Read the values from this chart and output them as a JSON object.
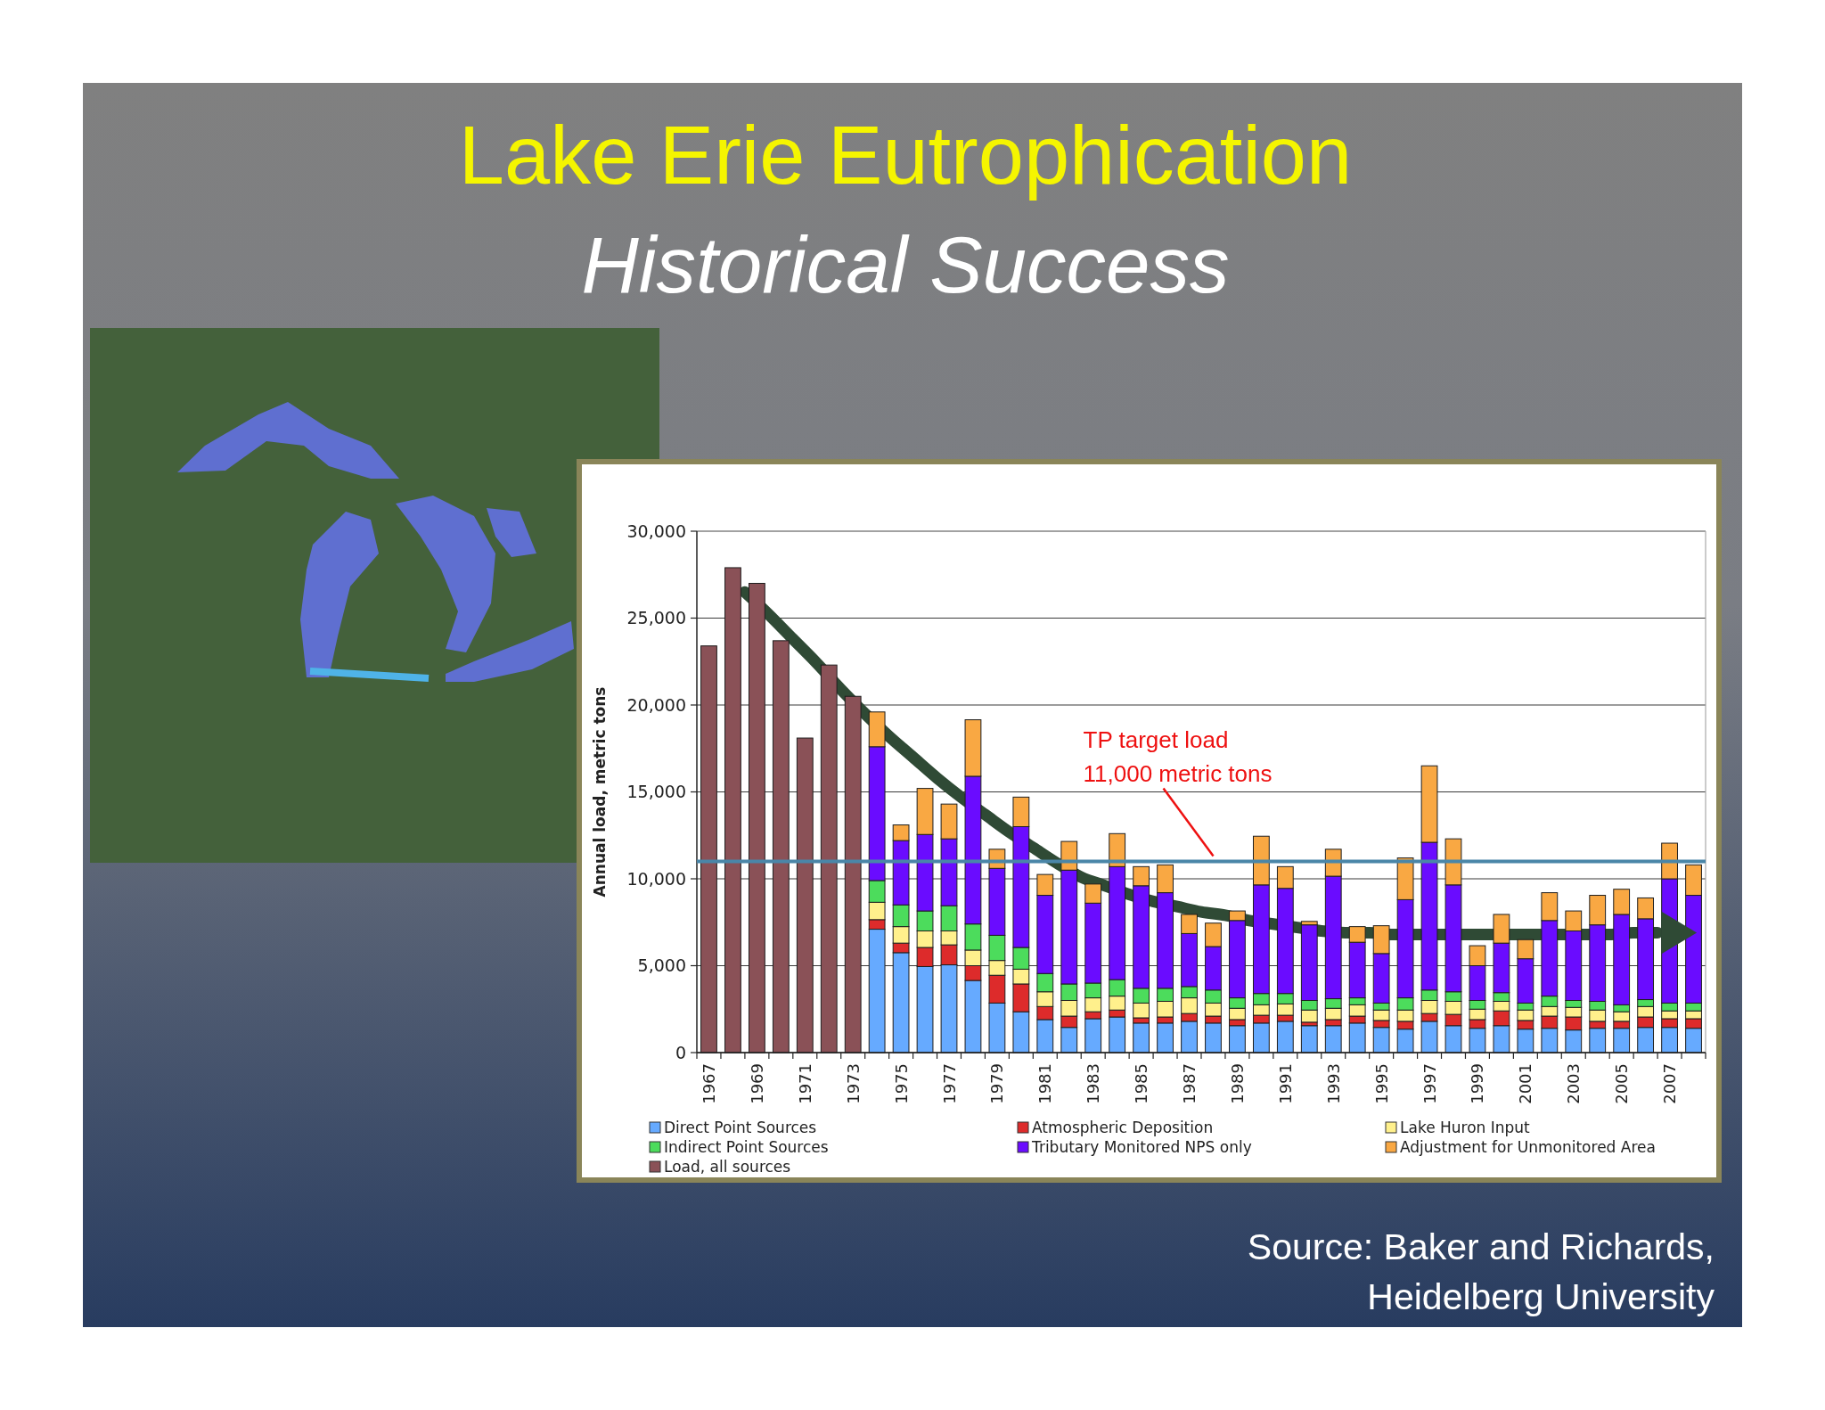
{
  "chart_data": {
    "type": "bar",
    "title": "Lake Erie Eutrophication",
    "subtitle": "Historical Success",
    "ylabel": "Annual load, metric tons",
    "x": [
      1967,
      1968,
      1969,
      1970,
      1971,
      1972,
      1973,
      1974,
      1975,
      1976,
      1977,
      1978,
      1979,
      1980,
      1981,
      1982,
      1983,
      1984,
      1985,
      1986,
      1987,
      1988,
      1989,
      1990,
      1991,
      1992,
      1993,
      1994,
      1995,
      1996,
      1997,
      1998,
      1999,
      2000,
      2001,
      2002,
      2003,
      2004,
      2005,
      2006,
      2007,
      2008
    ],
    "xlim": [
      1966.5,
      2008.5
    ],
    "xticks": [
      1967,
      1969,
      1971,
      1973,
      1975,
      1977,
      1979,
      1981,
      1983,
      1985,
      1987,
      1989,
      1991,
      1993,
      1995,
      1997,
      1999,
      2001,
      2003,
      2005,
      2007
    ],
    "stacked": true,
    "series": [
      {
        "name": "Direct Point Sources",
        "color": "#66aaff",
        "values": [
          null,
          null,
          null,
          null,
          null,
          null,
          null,
          7100,
          5750,
          4950,
          5050,
          4150,
          2850,
          2350,
          1900,
          1450,
          1950,
          2050,
          1700,
          1700,
          1800,
          1700,
          1550,
          1700,
          1800,
          1550,
          1550,
          1700,
          1450,
          1350,
          1800,
          1550,
          1400,
          1550,
          1350,
          1400,
          1300,
          1400,
          1400,
          1450,
          1450,
          1400
        ]
      },
      {
        "name": "Atmospheric Deposition",
        "color": "#dd2b2b",
        "values": [
          null,
          null,
          null,
          null,
          null,
          null,
          null,
          550,
          550,
          1100,
          1150,
          850,
          1600,
          1600,
          750,
          650,
          400,
          400,
          300,
          350,
          450,
          400,
          350,
          450,
          350,
          200,
          350,
          400,
          400,
          450,
          450,
          650,
          500,
          850,
          500,
          700,
          750,
          400,
          400,
          600,
          500,
          550
        ]
      },
      {
        "name": "Lake Huron Input",
        "color": "#fff08c",
        "values": [
          null,
          null,
          null,
          null,
          null,
          null,
          null,
          1000,
          950,
          950,
          800,
          900,
          850,
          850,
          850,
          900,
          800,
          800,
          850,
          900,
          900,
          750,
          650,
          600,
          650,
          700,
          650,
          650,
          600,
          650,
          750,
          750,
          600,
          550,
          600,
          550,
          550,
          650,
          550,
          600,
          450,
          450
        ]
      },
      {
        "name": "Indirect Point Sources",
        "color": "#4cdc5c",
        "values": [
          null,
          null,
          null,
          null,
          null,
          null,
          null,
          1250,
          1250,
          1150,
          1450,
          1500,
          1450,
          1250,
          1050,
          950,
          850,
          950,
          850,
          750,
          650,
          750,
          600,
          650,
          600,
          550,
          550,
          400,
          400,
          700,
          600,
          550,
          500,
          500,
          400,
          600,
          400,
          500,
          400,
          400,
          450,
          450
        ]
      },
      {
        "name": "Tributary Monitored NPS only",
        "color": "#6a0cff",
        "values": [
          null,
          null,
          null,
          null,
          null,
          null,
          null,
          7700,
          3700,
          4400,
          3850,
          8500,
          3850,
          6950,
          4500,
          6550,
          4600,
          6500,
          5900,
          5500,
          3050,
          2500,
          4450,
          6250,
          6050,
          4350,
          7050,
          3200,
          2850,
          5650,
          8500,
          6150,
          2000,
          2850,
          2550,
          4350,
          4000,
          4400,
          5200,
          4650,
          7150,
          6200
        ]
      },
      {
        "name": "Adjustment for Unmonitored Area",
        "color": "#f9a843",
        "values": [
          null,
          null,
          null,
          null,
          null,
          null,
          null,
          2000,
          900,
          2650,
          2000,
          3250,
          1100,
          1700,
          1200,
          1650,
          1100,
          1900,
          1100,
          1600,
          1100,
          1350,
          550,
          2800,
          1250,
          200,
          1550,
          900,
          1600,
          2400,
          4400,
          2650,
          1150,
          1650,
          1100,
          1600,
          1150,
          1700,
          1450,
          1200,
          2050,
          1750
        ]
      },
      {
        "name": "Load, all sources",
        "color": "#8a5157",
        "values": [
          23400,
          27900,
          27000,
          23700,
          18100,
          22300,
          20500,
          null,
          null,
          null,
          null,
          null,
          null,
          null,
          null,
          null,
          null,
          null,
          null,
          null,
          null,
          null,
          null,
          null,
          null,
          null,
          null,
          null,
          null,
          null,
          null,
          null,
          null,
          null,
          null,
          null,
          null,
          null,
          null,
          null,
          null,
          null
        ]
      },
      {
        "type": "line",
        "color": "#2f4a35",
        "x": [
          1968.5,
          1969.5,
          1970.5,
          1971.5,
          1972.5,
          1973.5,
          1974.5,
          1975.5,
          1976.5,
          1977.5,
          1978.5,
          1979.5,
          1980.5,
          1981.5,
          1982.5,
          1983.5,
          1984.5,
          1985.5,
          1986.5,
          1987.5,
          1988.5,
          1989.5,
          1990.5,
          1991.5,
          1992.5,
          1993.5,
          1994.5,
          1995.5,
          1996.5,
          1997.5,
          1998.5,
          1999.5,
          2000.5,
          2001.5,
          2002.5,
          2003.5,
          2004.5,
          2005.5,
          2006.5
        ],
        "values": [
          26500,
          25200,
          23800,
          22400,
          20900,
          19500,
          18200,
          17000,
          15800,
          14700,
          13700,
          12700,
          11800,
          10900,
          10100,
          9600,
          9100,
          8700,
          8400,
          8100,
          7900,
          7600,
          7400,
          7200,
          7000,
          6900,
          6900,
          6800,
          6800,
          6800,
          6800,
          6800,
          6800,
          6800,
          6800,
          6800,
          6800,
          6900,
          6900
        ]
      }
    ],
    "ylim": [
      0,
      30000
    ],
    "yticks": [
      0,
      {
        "value": 5000,
        "label": "5,000"
      },
      {
        "value": 10000,
        "label": "10,000"
      },
      {
        "value": 15000,
        "label": "15,000"
      },
      {
        "value": 20000,
        "label": "20,000"
      },
      {
        "value": 25000,
        "label": "25,000"
      },
      {
        "value": 30000,
        "label": "30,000"
      }
    ],
    "grid": "y",
    "legend": "bottom",
    "ref_lines": [
      {
        "axis": "y",
        "value": 11000,
        "label": "TP target load\n11,000 metric tons",
        "color": "#4a86a8"
      }
    ],
    "annotations": [
      "Source: Baker and Richards,\nHeidelberg University"
    ]
  }
}
